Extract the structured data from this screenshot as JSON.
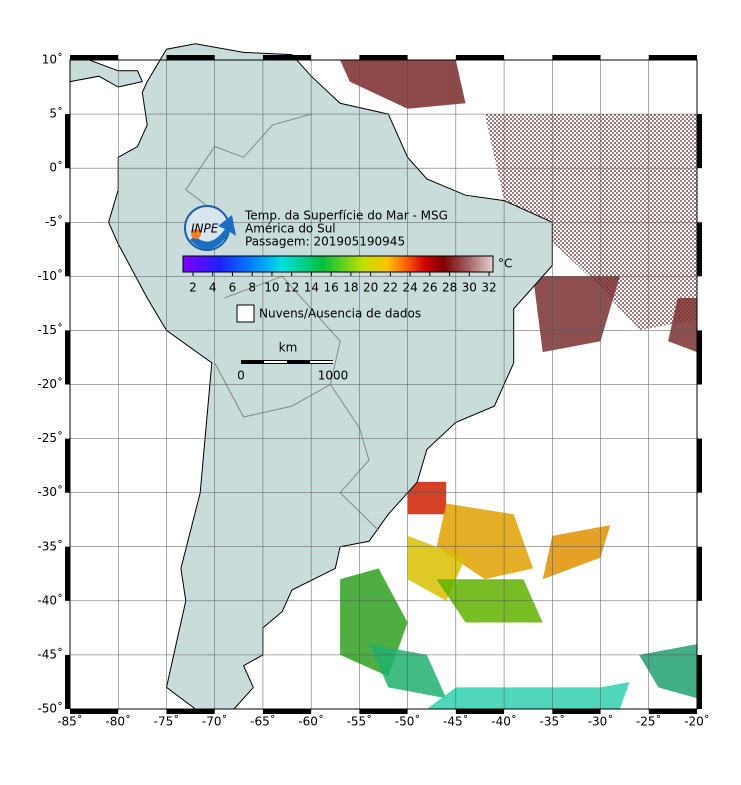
{
  "map": {
    "logo": "INPE",
    "title": [
      "Temp. da Superfície do Mar - MSG",
      "América do Sul",
      "Passagem: 201905190945"
    ],
    "colorbar": {
      "unit": "°C",
      "ticks": [
        "2",
        "4",
        "6",
        "8",
        "10",
        "12",
        "14",
        "16",
        "18",
        "20",
        "22",
        "24",
        "26",
        "28",
        "30",
        "32"
      ]
    },
    "legend": "Nuvens/Ausencia de dados",
    "scale": {
      "unit": "km",
      "labels": [
        "0",
        "1000"
      ]
    },
    "lon_ticks": [
      "-85˚",
      "-80˚",
      "-75˚",
      "-70˚",
      "-65˚",
      "-60˚",
      "-55˚",
      "-50˚",
      "-45˚",
      "-40˚",
      "-35˚",
      "-30˚",
      "-25˚",
      "-20˚"
    ],
    "lat_ticks": [
      "10˚",
      "5˚",
      "0˚",
      "-5˚",
      "-10˚",
      "-15˚",
      "-20˚",
      "-25˚",
      "-30˚",
      "-35˚",
      "-40˚",
      "-45˚",
      "-50˚"
    ]
  }
}
